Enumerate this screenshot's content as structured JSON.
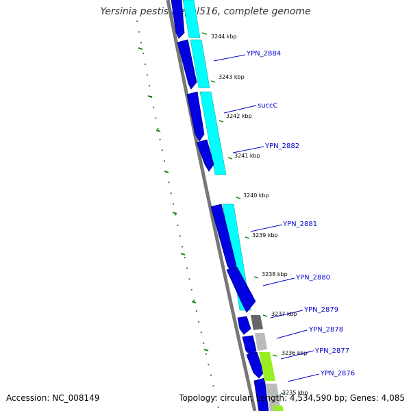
{
  "title": "Yersinia pestis Nepal516, complete genome",
  "accession": "Accession: NC_008149",
  "summary": "Topology: circular; Length: 4,534,590 bp; Genes: 4,085",
  "colors": {
    "cds": "#0000e0",
    "cds_outline": "#000088",
    "strand_band": "#00ffff",
    "backbone": "#777777",
    "gc_dots": "#228822",
    "label_line": "#0000cc",
    "grey_feature": "#666666",
    "light_feature": "#bbbbbb",
    "green_feature": "#99ee22"
  },
  "ticks": [
    {
      "label": "3244 kbp"
    },
    {
      "label": "3243 kbp"
    },
    {
      "label": "3242 kbp"
    },
    {
      "label": "3241 kbp"
    },
    {
      "label": "3240 kbp"
    },
    {
      "label": "3239 kbp"
    },
    {
      "label": "3238 kbp"
    },
    {
      "label": "3237 kbp"
    },
    {
      "label": "3236 kbp"
    },
    {
      "label": "3235 kbp"
    }
  ],
  "genes": [
    {
      "label": "YPN_2884"
    },
    {
      "label": "succC"
    },
    {
      "label": "YPN_2882"
    },
    {
      "label": "YPN_2881"
    },
    {
      "label": "YPN_2880"
    },
    {
      "label": "YPN_2879"
    },
    {
      "label": "YPN_2878"
    },
    {
      "label": "YPN_2877"
    },
    {
      "label": "YPN_2876"
    }
  ]
}
